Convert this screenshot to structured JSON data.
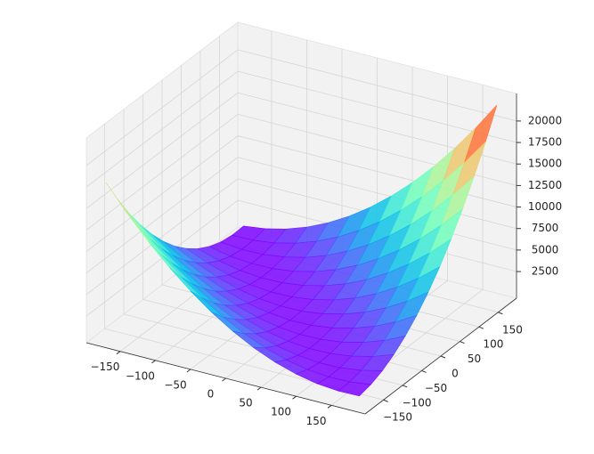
{
  "chart_data": {
    "type": "surface",
    "colormap": "rainbow",
    "grid": true,
    "x": [
      -180,
      -150,
      -120,
      -90,
      -60,
      -30,
      0,
      30,
      60,
      90,
      120,
      150,
      180
    ],
    "y": [
      -180,
      -150,
      -120,
      -90,
      -60,
      -30,
      0,
      30,
      60,
      90,
      120,
      150,
      180
    ],
    "z": [
      [
        17780,
        14855,
        12200,
        9815,
        7700,
        5855,
        4280,
        2975,
        1940,
        1175,
        680,
        455,
        500
      ],
      [
        14855,
        12200,
        9815,
        7700,
        5855,
        4280,
        2975,
        1940,
        1175,
        680,
        455,
        500,
        815
      ],
      [
        12200,
        9815,
        7700,
        5855,
        4280,
        2975,
        1940,
        1175,
        680,
        455,
        500,
        815,
        1400
      ],
      [
        9815,
        7700,
        5855,
        4280,
        2975,
        1940,
        1175,
        680,
        455,
        500,
        815,
        1400,
        2255
      ],
      [
        7700,
        5855,
        4280,
        2975,
        1940,
        1175,
        680,
        455,
        500,
        815,
        1400,
        2255,
        3380
      ],
      [
        5855,
        4280,
        2975,
        1940,
        1175,
        680,
        455,
        500,
        815,
        1400,
        2255,
        3380,
        4775
      ],
      [
        4280,
        2975,
        1940,
        1175,
        680,
        455,
        500,
        815,
        1400,
        2255,
        3380,
        4775,
        6440
      ],
      [
        2975,
        1940,
        1175,
        680,
        455,
        500,
        815,
        1400,
        2255,
        3380,
        4775,
        6440,
        8375
      ],
      [
        1940,
        1175,
        680,
        455,
        500,
        815,
        1400,
        2255,
        3380,
        4775,
        6440,
        8375,
        10580
      ],
      [
        1175,
        680,
        455,
        500,
        815,
        1400,
        2255,
        3380,
        4775,
        6440,
        8375,
        10580,
        13055
      ],
      [
        680,
        455,
        500,
        815,
        1400,
        2255,
        3380,
        4775,
        6440,
        8375,
        10580,
        13055,
        15800
      ],
      [
        455,
        500,
        815,
        1400,
        2255,
        3380,
        4775,
        6440,
        8375,
        10580,
        13055,
        15800,
        18815
      ],
      [
        500,
        815,
        1400,
        2255,
        3380,
        4775,
        6440,
        8375,
        10580,
        13055,
        15800,
        18815,
        22100
      ]
    ],
    "xlim": [
      -198,
      198
    ],
    "ylim": [
      -198,
      198
    ],
    "zlim": [
      -600,
      23200
    ],
    "xticks": [
      {
        "value": -150,
        "label": "−150"
      },
      {
        "value": -100,
        "label": "−100"
      },
      {
        "value": -50,
        "label": "−50"
      },
      0,
      50,
      100,
      150
    ],
    "yticks": [
      {
        "value": -150,
        "label": "−150"
      },
      {
        "value": -100,
        "label": "−100"
      },
      {
        "value": -50,
        "label": "−50"
      },
      0,
      50,
      100,
      150
    ],
    "zticks": [
      2500,
      5000,
      7500,
      10000,
      12500,
      15000,
      17500,
      20000
    ]
  }
}
